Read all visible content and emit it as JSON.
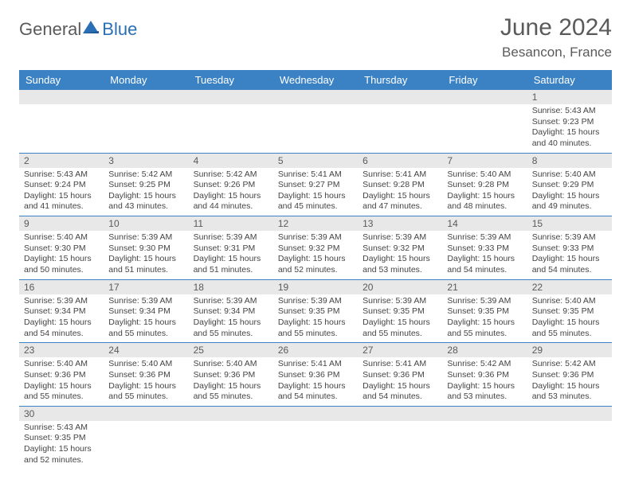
{
  "brand": {
    "part1": "General",
    "part2": "Blue"
  },
  "title": "June 2024",
  "location": "Besancon, France",
  "colors": {
    "header_bg": "#3b82c4",
    "header_fg": "#ffffff",
    "daynum_bg": "#e8e8e8",
    "text": "#5a5a5a",
    "rule": "#3b82c4"
  },
  "weekdays": [
    "Sunday",
    "Monday",
    "Tuesday",
    "Wednesday",
    "Thursday",
    "Friday",
    "Saturday"
  ],
  "weeks": [
    [
      null,
      null,
      null,
      null,
      null,
      null,
      {
        "n": "1",
        "sr": "5:43 AM",
        "ss": "9:23 PM",
        "dl": "15 hours and 40 minutes."
      }
    ],
    [
      {
        "n": "2",
        "sr": "5:43 AM",
        "ss": "9:24 PM",
        "dl": "15 hours and 41 minutes."
      },
      {
        "n": "3",
        "sr": "5:42 AM",
        "ss": "9:25 PM",
        "dl": "15 hours and 43 minutes."
      },
      {
        "n": "4",
        "sr": "5:42 AM",
        "ss": "9:26 PM",
        "dl": "15 hours and 44 minutes."
      },
      {
        "n": "5",
        "sr": "5:41 AM",
        "ss": "9:27 PM",
        "dl": "15 hours and 45 minutes."
      },
      {
        "n": "6",
        "sr": "5:41 AM",
        "ss": "9:28 PM",
        "dl": "15 hours and 47 minutes."
      },
      {
        "n": "7",
        "sr": "5:40 AM",
        "ss": "9:28 PM",
        "dl": "15 hours and 48 minutes."
      },
      {
        "n": "8",
        "sr": "5:40 AM",
        "ss": "9:29 PM",
        "dl": "15 hours and 49 minutes."
      }
    ],
    [
      {
        "n": "9",
        "sr": "5:40 AM",
        "ss": "9:30 PM",
        "dl": "15 hours and 50 minutes."
      },
      {
        "n": "10",
        "sr": "5:39 AM",
        "ss": "9:30 PM",
        "dl": "15 hours and 51 minutes."
      },
      {
        "n": "11",
        "sr": "5:39 AM",
        "ss": "9:31 PM",
        "dl": "15 hours and 51 minutes."
      },
      {
        "n": "12",
        "sr": "5:39 AM",
        "ss": "9:32 PM",
        "dl": "15 hours and 52 minutes."
      },
      {
        "n": "13",
        "sr": "5:39 AM",
        "ss": "9:32 PM",
        "dl": "15 hours and 53 minutes."
      },
      {
        "n": "14",
        "sr": "5:39 AM",
        "ss": "9:33 PM",
        "dl": "15 hours and 54 minutes."
      },
      {
        "n": "15",
        "sr": "5:39 AM",
        "ss": "9:33 PM",
        "dl": "15 hours and 54 minutes."
      }
    ],
    [
      {
        "n": "16",
        "sr": "5:39 AM",
        "ss": "9:34 PM",
        "dl": "15 hours and 54 minutes."
      },
      {
        "n": "17",
        "sr": "5:39 AM",
        "ss": "9:34 PM",
        "dl": "15 hours and 55 minutes."
      },
      {
        "n": "18",
        "sr": "5:39 AM",
        "ss": "9:34 PM",
        "dl": "15 hours and 55 minutes."
      },
      {
        "n": "19",
        "sr": "5:39 AM",
        "ss": "9:35 PM",
        "dl": "15 hours and 55 minutes."
      },
      {
        "n": "20",
        "sr": "5:39 AM",
        "ss": "9:35 PM",
        "dl": "15 hours and 55 minutes."
      },
      {
        "n": "21",
        "sr": "5:39 AM",
        "ss": "9:35 PM",
        "dl": "15 hours and 55 minutes."
      },
      {
        "n": "22",
        "sr": "5:40 AM",
        "ss": "9:35 PM",
        "dl": "15 hours and 55 minutes."
      }
    ],
    [
      {
        "n": "23",
        "sr": "5:40 AM",
        "ss": "9:36 PM",
        "dl": "15 hours and 55 minutes."
      },
      {
        "n": "24",
        "sr": "5:40 AM",
        "ss": "9:36 PM",
        "dl": "15 hours and 55 minutes."
      },
      {
        "n": "25",
        "sr": "5:40 AM",
        "ss": "9:36 PM",
        "dl": "15 hours and 55 minutes."
      },
      {
        "n": "26",
        "sr": "5:41 AM",
        "ss": "9:36 PM",
        "dl": "15 hours and 54 minutes."
      },
      {
        "n": "27",
        "sr": "5:41 AM",
        "ss": "9:36 PM",
        "dl": "15 hours and 54 minutes."
      },
      {
        "n": "28",
        "sr": "5:42 AM",
        "ss": "9:36 PM",
        "dl": "15 hours and 53 minutes."
      },
      {
        "n": "29",
        "sr": "5:42 AM",
        "ss": "9:36 PM",
        "dl": "15 hours and 53 minutes."
      }
    ],
    [
      {
        "n": "30",
        "sr": "5:43 AM",
        "ss": "9:35 PM",
        "dl": "15 hours and 52 minutes."
      },
      null,
      null,
      null,
      null,
      null,
      null
    ]
  ],
  "labels": {
    "sunrise": "Sunrise:",
    "sunset": "Sunset:",
    "daylight": "Daylight:"
  }
}
